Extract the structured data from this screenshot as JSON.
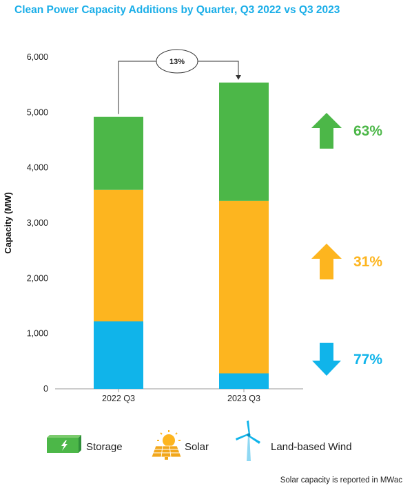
{
  "chart_data": {
    "type": "bar",
    "stacked": true,
    "title": "Clean Power Capacity Additions by Quarter, Q3 2022 vs Q3 2023",
    "xlabel": "",
    "ylabel": "Capacity (MW)",
    "ylim": [
      0,
      6000
    ],
    "yticks": [
      0,
      1000,
      2000,
      3000,
      4000,
      5000,
      6000
    ],
    "ytick_labels": [
      "0",
      "1,000",
      "2,000",
      "3,000",
      "4,000",
      "5,000",
      "6,000"
    ],
    "categories": [
      "2022 Q3",
      "2023 Q3"
    ],
    "series": [
      {
        "name": "Land-based Wind",
        "color": "#10b4ea",
        "values": [
          1220,
          280
        ]
      },
      {
        "name": "Solar",
        "color": "#fdb51f",
        "values": [
          2380,
          3120
        ]
      },
      {
        "name": "Storage",
        "color": "#4cb748",
        "values": [
          1320,
          2140
        ]
      }
    ],
    "total_change": "13%",
    "changes": [
      {
        "series": "Storage",
        "label": "63%",
        "direction": "up",
        "color": "#4cb748"
      },
      {
        "series": "Solar",
        "label": "31%",
        "direction": "up",
        "color": "#fdb51f"
      },
      {
        "series": "Land-based Wind",
        "label": "77%",
        "direction": "down",
        "color": "#10b4ea"
      }
    ],
    "grid": false,
    "legend": "bottom"
  },
  "legend": {
    "items": [
      {
        "label": "Storage",
        "icon": "battery-icon"
      },
      {
        "label": "Solar",
        "icon": "solar-panel-icon"
      },
      {
        "label": "Land-based Wind",
        "icon": "wind-turbine-icon"
      }
    ]
  },
  "footnote": "Solar capacity is reported in MWac"
}
